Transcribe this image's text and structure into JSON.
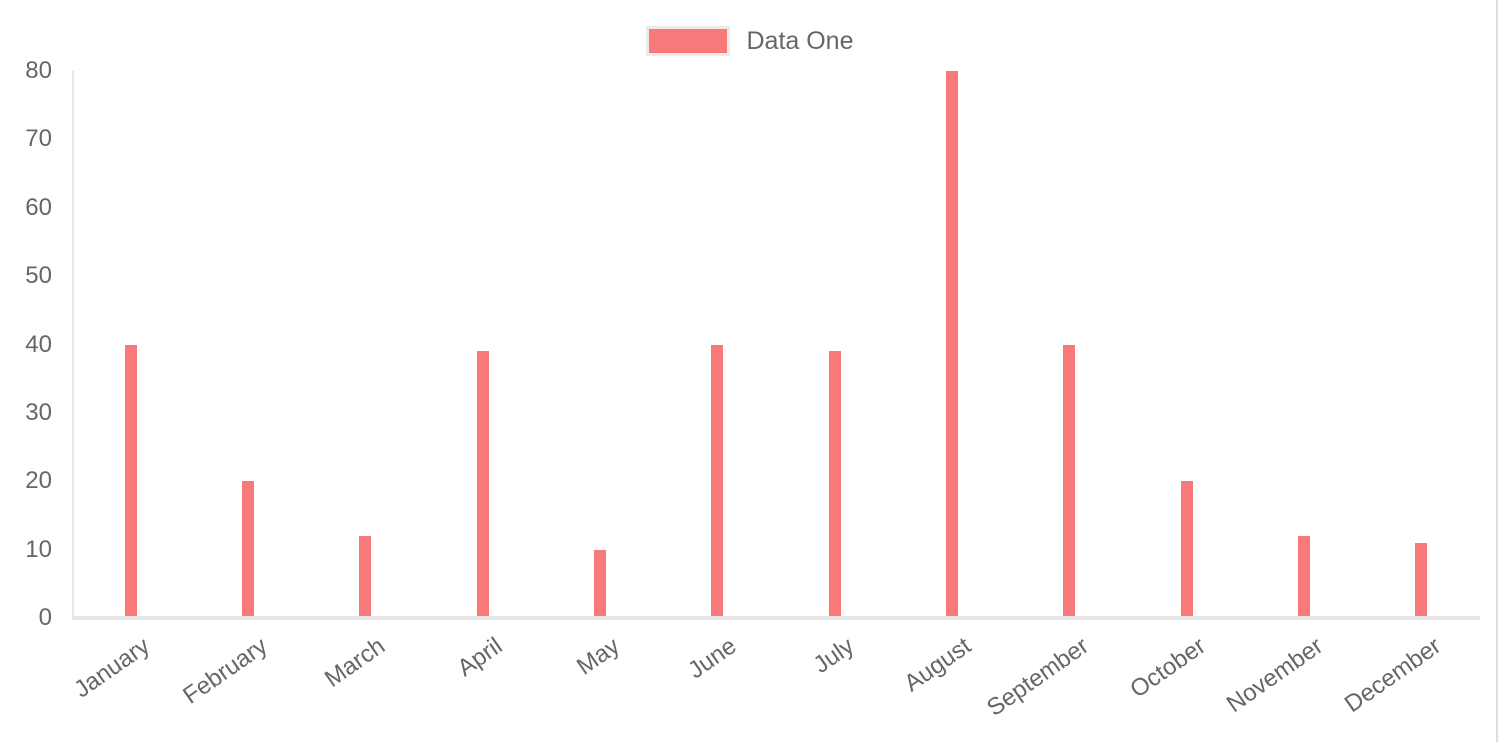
{
  "legend": {
    "label": "Data One"
  },
  "colors": {
    "bar": "#f87979",
    "swatch_border": "#ebebeb",
    "axis_line": "#e7e7e7",
    "tick_text": "#666666",
    "page_edge_line": "#dcdcdc"
  },
  "chart_data": {
    "type": "bar",
    "title": "",
    "xlabel": "",
    "ylabel": "",
    "categories": [
      "January",
      "February",
      "March",
      "April",
      "May",
      "June",
      "July",
      "August",
      "September",
      "October",
      "November",
      "December"
    ],
    "series": [
      {
        "name": "Data One",
        "color": "#f87979",
        "values": [
          40,
          20,
          12,
          39,
          10,
          40,
          39,
          80,
          40,
          20,
          12,
          11
        ]
      }
    ],
    "ylim": [
      0,
      80
    ],
    "y_ticks": [
      0,
      10,
      20,
      30,
      40,
      50,
      60,
      70,
      80
    ],
    "grid": false,
    "legend_position": "top",
    "x_label_rotation_deg": -35
  }
}
